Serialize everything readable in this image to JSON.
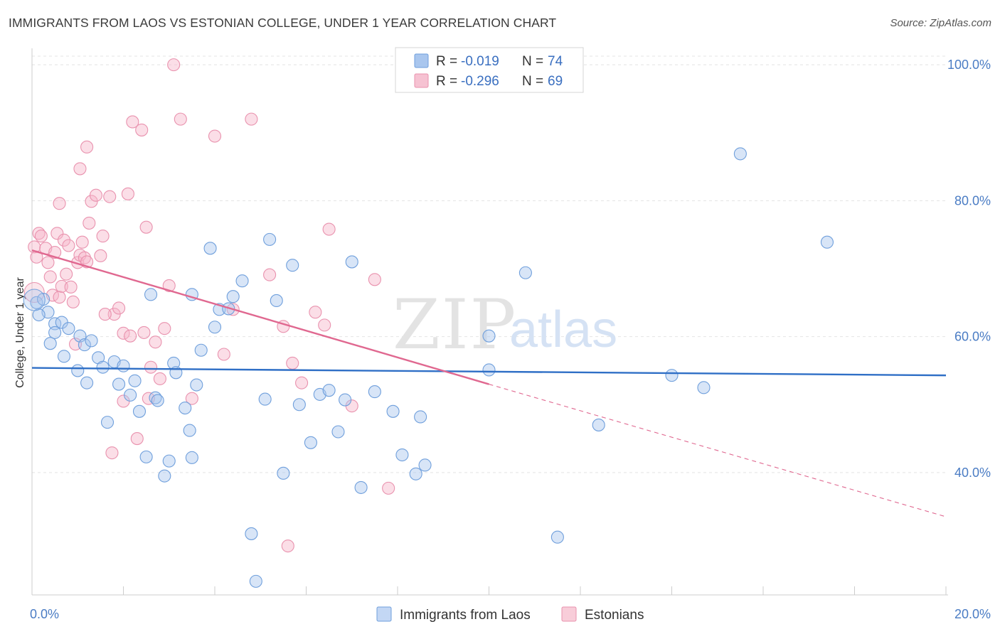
{
  "title": "IMMIGRANTS FROM LAOS VS ESTONIAN COLLEGE, UNDER 1 YEAR CORRELATION CHART",
  "source": "Source: ZipAtlas.com",
  "watermark": {
    "zip": "ZIP",
    "atlas": "atlas"
  },
  "colors": {
    "blue_fill": "#a9c6ee",
    "blue_stroke": "#6f9fdc",
    "blue_line": "#2f6fc6",
    "pink_fill": "#f6b6c9",
    "pink_stroke": "#e992ae",
    "pink_line": "#e06890",
    "tick_label": "#4a7cc4",
    "grid": "#e4e4e4"
  },
  "legend": {
    "rows": [
      {
        "r_label": "R = ",
        "r_value": "-0.019",
        "n_label": "N = ",
        "n_value": "74",
        "series": "blue"
      },
      {
        "r_label": "R = ",
        "r_value": "-0.296",
        "n_label": "N = ",
        "n_value": "69",
        "series": "pink"
      }
    ]
  },
  "bottom_legend": [
    "Immigrants from Laos",
    "Estonians"
  ],
  "chart_data": {
    "type": "scatter",
    "title": "IMMIGRANTS FROM LAOS VS ESTONIAN COLLEGE, UNDER 1 YEAR CORRELATION CHART",
    "xlabel": "",
    "ylabel": "College, Under 1 year",
    "xlim": [
      0,
      20
    ],
    "ylim": [
      22,
      102
    ],
    "x_ticks": [
      0,
      20
    ],
    "x_tick_labels": [
      "0.0%",
      "20.0%"
    ],
    "y_ticks": [
      40,
      60,
      80,
      100
    ],
    "y_tick_labels": [
      "40.0%",
      "60.0%",
      "80.0%",
      "100.0%"
    ],
    "grid": true,
    "legend_position": "top-center",
    "series": [
      {
        "name": "Immigrants from Laos",
        "color": "blue",
        "r": -0.019,
        "n": 74,
        "trend": {
          "x": [
            0,
            20
          ],
          "y": [
            55.4,
            54.3
          ]
        },
        "points": [
          [
            0.1,
            65.0
          ],
          [
            0.25,
            65.5
          ],
          [
            0.35,
            63.6
          ],
          [
            0.5,
            61.9
          ],
          [
            0.5,
            60.6
          ],
          [
            0.65,
            62.1
          ],
          [
            0.7,
            57.1
          ],
          [
            0.8,
            61.2
          ],
          [
            1.05,
            60.1
          ],
          [
            1.15,
            58.8
          ],
          [
            1.2,
            53.2
          ],
          [
            1.3,
            59.4
          ],
          [
            1.45,
            56.9
          ],
          [
            1.55,
            55.5
          ],
          [
            1.65,
            47.4
          ],
          [
            1.8,
            56.3
          ],
          [
            1.9,
            53.0
          ],
          [
            2.0,
            55.7
          ],
          [
            2.15,
            51.4
          ],
          [
            2.25,
            53.5
          ],
          [
            2.35,
            49.0
          ],
          [
            2.5,
            42.3
          ],
          [
            2.6,
            66.2
          ],
          [
            2.7,
            51.0
          ],
          [
            2.9,
            39.5
          ],
          [
            3.0,
            41.7
          ],
          [
            3.1,
            56.1
          ],
          [
            3.15,
            54.7
          ],
          [
            3.35,
            49.5
          ],
          [
            3.45,
            46.2
          ],
          [
            3.5,
            42.2
          ],
          [
            3.5,
            66.2
          ],
          [
            3.6,
            52.9
          ],
          [
            3.7,
            58.0
          ],
          [
            3.9,
            73.0
          ],
          [
            4.0,
            61.4
          ],
          [
            4.1,
            64.0
          ],
          [
            4.3,
            64.1
          ],
          [
            4.4,
            65.9
          ],
          [
            4.6,
            68.2
          ],
          [
            4.8,
            31.0
          ],
          [
            4.9,
            24.0
          ],
          [
            5.1,
            50.8
          ],
          [
            5.2,
            74.3
          ],
          [
            5.35,
            65.3
          ],
          [
            5.5,
            39.9
          ],
          [
            5.7,
            70.5
          ],
          [
            5.85,
            50.0
          ],
          [
            6.1,
            44.4
          ],
          [
            6.3,
            51.5
          ],
          [
            6.5,
            52.1
          ],
          [
            6.7,
            46.0
          ],
          [
            6.85,
            50.7
          ],
          [
            7.0,
            71.0
          ],
          [
            7.2,
            37.8
          ],
          [
            7.5,
            51.9
          ],
          [
            7.9,
            49.0
          ],
          [
            8.1,
            42.6
          ],
          [
            8.4,
            39.8
          ],
          [
            8.5,
            48.2
          ],
          [
            8.6,
            41.1
          ],
          [
            10.0,
            60.1
          ],
          [
            10.0,
            55.1
          ],
          [
            10.8,
            69.4
          ],
          [
            11.5,
            30.5
          ],
          [
            12.4,
            47.0
          ],
          [
            14.0,
            54.3
          ],
          [
            14.7,
            52.5
          ],
          [
            15.5,
            86.9
          ],
          [
            17.4,
            73.9
          ],
          [
            0.15,
            63.2
          ],
          [
            0.4,
            59.0
          ],
          [
            1.0,
            55.0
          ],
          [
            2.75,
            50.6
          ]
        ]
      },
      {
        "name": "Estonians",
        "color": "pink",
        "r": -0.296,
        "n": 69,
        "trend": {
          "x": [
            0,
            10
          ],
          "y": [
            72.7,
            53.0
          ]
        },
        "trend_dashed": {
          "x": [
            10,
            20
          ],
          "y": [
            53.0,
            33.5
          ]
        },
        "points": [
          [
            0.05,
            73.2
          ],
          [
            0.1,
            71.7
          ],
          [
            0.15,
            75.2
          ],
          [
            0.2,
            74.8
          ],
          [
            0.3,
            73.0
          ],
          [
            0.35,
            70.9
          ],
          [
            0.4,
            68.8
          ],
          [
            0.45,
            66.1
          ],
          [
            0.5,
            72.4
          ],
          [
            0.55,
            75.2
          ],
          [
            0.6,
            65.8
          ],
          [
            0.65,
            67.4
          ],
          [
            0.7,
            74.2
          ],
          [
            0.75,
            69.2
          ],
          [
            0.8,
            73.4
          ],
          [
            0.85,
            67.3
          ],
          [
            0.9,
            65.1
          ],
          [
            1.0,
            70.9
          ],
          [
            1.05,
            72.0
          ],
          [
            1.1,
            73.9
          ],
          [
            1.15,
            71.6
          ],
          [
            1.2,
            71.0
          ],
          [
            1.25,
            76.7
          ],
          [
            1.3,
            79.9
          ],
          [
            1.4,
            80.8
          ],
          [
            1.5,
            71.9
          ],
          [
            1.55,
            74.8
          ],
          [
            1.7,
            80.6
          ],
          [
            1.8,
            63.3
          ],
          [
            1.9,
            64.2
          ],
          [
            2.0,
            60.5
          ],
          [
            2.1,
            81.0
          ],
          [
            2.2,
            91.6
          ],
          [
            2.3,
            45.0
          ],
          [
            2.4,
            90.4
          ],
          [
            2.5,
            76.1
          ],
          [
            2.6,
            55.5
          ],
          [
            2.7,
            59.2
          ],
          [
            2.8,
            53.8
          ],
          [
            2.9,
            61.2
          ],
          [
            3.0,
            67.5
          ],
          [
            3.1,
            100.0
          ],
          [
            3.25,
            92.0
          ],
          [
            3.5,
            50.9
          ],
          [
            4.0,
            89.5
          ],
          [
            4.2,
            57.4
          ],
          [
            4.4,
            64.0
          ],
          [
            4.8,
            92.0
          ],
          [
            5.2,
            69.1
          ],
          [
            5.5,
            61.5
          ],
          [
            5.6,
            29.2
          ],
          [
            5.7,
            56.1
          ],
          [
            5.9,
            53.2
          ],
          [
            6.2,
            63.6
          ],
          [
            6.4,
            61.7
          ],
          [
            6.5,
            75.8
          ],
          [
            7.0,
            49.8
          ],
          [
            7.5,
            68.4
          ],
          [
            7.8,
            37.7
          ],
          [
            1.05,
            84.7
          ],
          [
            1.2,
            87.9
          ],
          [
            0.95,
            58.9
          ],
          [
            0.6,
            79.6
          ],
          [
            1.6,
            63.3
          ],
          [
            2.15,
            60.1
          ],
          [
            1.75,
            42.9
          ],
          [
            2.45,
            60.6
          ],
          [
            2.0,
            50.5
          ],
          [
            2.55,
            50.9
          ]
        ]
      }
    ]
  }
}
